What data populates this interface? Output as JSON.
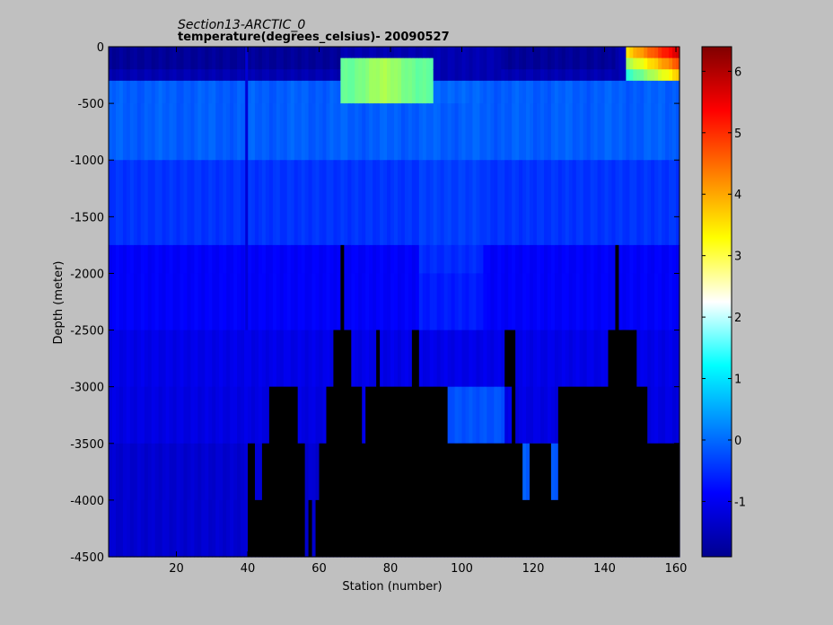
{
  "chart_data": {
    "type": "heatmap",
    "title": "Section13-ARCTIC_0",
    "subtitle": "temperature(degrees_celsius)- 20090527",
    "xlabel": "Station (number)",
    "ylabel": "Depth (meter)",
    "xlim": [
      1,
      161
    ],
    "ylim": [
      -4500,
      0
    ],
    "xticks": [
      20,
      40,
      60,
      80,
      100,
      120,
      140,
      160
    ],
    "yticks": [
      0,
      -500,
      -1000,
      -1500,
      -2000,
      -2500,
      -3000,
      -3500,
      -4000,
      -4500
    ],
    "colorbar": {
      "range": [
        -1.9,
        6.4
      ],
      "ticks": [
        -1,
        0,
        1,
        2,
        3,
        4,
        5,
        6
      ],
      "colormap": "jet"
    },
    "grid": false,
    "depth_layers": [
      0,
      -100,
      -200,
      -300,
      -500,
      -1000,
      -1750,
      -2000,
      -2500,
      -3000,
      -3500,
      -4000,
      -4500
    ],
    "bottom_profile": [
      [
        1,
        -4500
      ],
      [
        40,
        -4500
      ],
      [
        40,
        -3500
      ],
      [
        42,
        -3500
      ],
      [
        42,
        -4000
      ],
      [
        44,
        -4000
      ],
      [
        44,
        -3500
      ],
      [
        46,
        -3500
      ],
      [
        46,
        -3000
      ],
      [
        54,
        -3000
      ],
      [
        54,
        -3500
      ],
      [
        56,
        -3500
      ],
      [
        56,
        -4500
      ],
      [
        57,
        -4500
      ],
      [
        57,
        -4000
      ],
      [
        58,
        -4000
      ],
      [
        58,
        -4500
      ],
      [
        59,
        -4500
      ],
      [
        59,
        -4000
      ],
      [
        60,
        -4000
      ],
      [
        60,
        -3500
      ],
      [
        62,
        -3500
      ],
      [
        62,
        -3000
      ],
      [
        64,
        -3000
      ],
      [
        64,
        -2500
      ],
      [
        66,
        -2500
      ],
      [
        66,
        -1750
      ],
      [
        67,
        -1750
      ],
      [
        67,
        -2500
      ],
      [
        69,
        -2500
      ],
      [
        69,
        -3000
      ],
      [
        72,
        -3000
      ],
      [
        72,
        -3500
      ],
      [
        73,
        -3500
      ],
      [
        73,
        -3000
      ],
      [
        76,
        -3000
      ],
      [
        76,
        -2500
      ],
      [
        77,
        -2500
      ],
      [
        77,
        -3000
      ],
      [
        86,
        -3000
      ],
      [
        86,
        -2500
      ],
      [
        88,
        -2500
      ],
      [
        88,
        -3000
      ],
      [
        96,
        -3000
      ],
      [
        96,
        -3500
      ],
      [
        114,
        -3500
      ],
      [
        114,
        -3000
      ],
      [
        112,
        -3000
      ],
      [
        112,
        -2500
      ],
      [
        115,
        -2500
      ],
      [
        115,
        -3500
      ],
      [
        117,
        -3500
      ],
      [
        117,
        -4000
      ],
      [
        119,
        -4000
      ],
      [
        119,
        -3500
      ],
      [
        125,
        -3500
      ],
      [
        125,
        -4000
      ],
      [
        127,
        -4000
      ],
      [
        127,
        -3000
      ],
      [
        141,
        -3000
      ],
      [
        141,
        -2500
      ],
      [
        143,
        -2500
      ],
      [
        143,
        -1750
      ],
      [
        144,
        -1750
      ],
      [
        144,
        -2500
      ],
      [
        149,
        -2500
      ],
      [
        149,
        -3000
      ],
      [
        152,
        -3000
      ],
      [
        152,
        -3500
      ],
      [
        161,
        -3500
      ]
    ],
    "surface_features": [
      {
        "station_range": [
          1,
          90
        ],
        "depth_range": [
          0,
          -300
        ],
        "temp": -1.6
      },
      {
        "station_range": [
          66,
          88
        ],
        "depth_range": [
          -100,
          -400
        ],
        "temp": 2.5
      },
      {
        "station_range": [
          112,
          150
        ],
        "depth_range": [
          0,
          -250
        ],
        "temp": -1.7
      },
      {
        "station_range": [
          146,
          161
        ],
        "depth_range": [
          0,
          -250
        ],
        "temp": 4.5
      }
    ]
  }
}
